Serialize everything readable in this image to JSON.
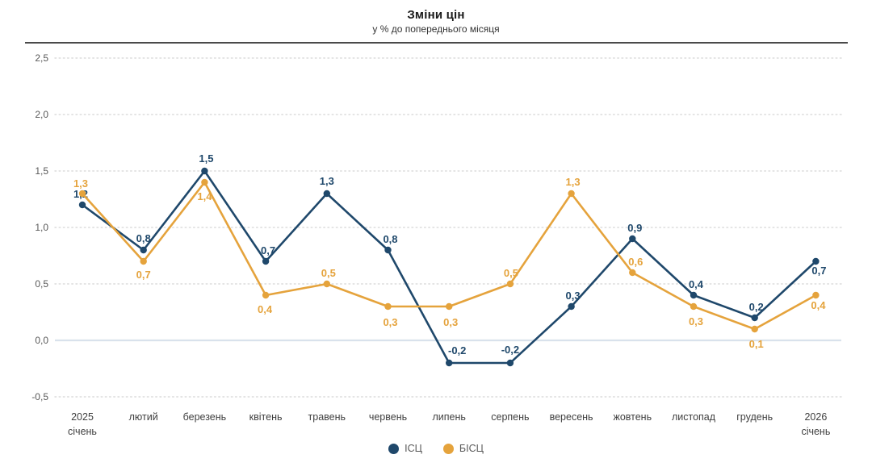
{
  "header": {
    "title": "Зміни цін",
    "subtitle": "у % до попереднього місяця"
  },
  "chart_data": {
    "type": "line",
    "categories": [
      [
        "2025",
        "січень"
      ],
      [
        "лютий"
      ],
      [
        "березень"
      ],
      [
        "квітень"
      ],
      [
        "травень"
      ],
      [
        "червень"
      ],
      [
        "липень"
      ],
      [
        "серпень"
      ],
      [
        "вересень"
      ],
      [
        "жовтень"
      ],
      [
        "листопад"
      ],
      [
        "грудень"
      ],
      [
        "2026",
        "січень"
      ]
    ],
    "series": [
      {
        "name": "ІСЦ",
        "color": "#1f486b",
        "values": [
          1.2,
          0.8,
          1.5,
          0.7,
          1.3,
          0.8,
          -0.2,
          -0.2,
          0.3,
          0.9,
          0.4,
          0.2,
          0.7
        ],
        "labels": [
          "1,2",
          "0,8",
          "1,5",
          "0,7",
          "1,3",
          "0,8",
          "-0,2",
          "-0,2",
          "0,3",
          "0,9",
          "0,4",
          "0,2",
          "0,7"
        ],
        "label_offsets": [
          [
            -2,
            -13
          ],
          [
            0,
            -14
          ],
          [
            2,
            -15
          ],
          [
            3,
            -13
          ],
          [
            0,
            -15
          ],
          [
            3,
            -13
          ],
          [
            10,
            -15
          ],
          [
            0,
            -16
          ],
          [
            2,
            -13
          ],
          [
            3,
            -13
          ],
          [
            3,
            -13
          ],
          [
            2,
            -13
          ],
          [
            4,
            12
          ]
        ]
      },
      {
        "name": "БІСЦ",
        "color": "#e5a33c",
        "values": [
          1.3,
          0.7,
          1.4,
          0.4,
          0.5,
          0.3,
          0.3,
          0.5,
          1.3,
          0.6,
          0.3,
          0.1,
          0.4
        ],
        "labels": [
          "1,3",
          "0,7",
          "1,4",
          "0,4",
          "0,5",
          "0,3",
          "0,3",
          "0,5",
          "1,3",
          "0,6",
          "0,3",
          "0,1",
          "0,4"
        ],
        "label_offsets": [
          [
            -2,
            -12
          ],
          [
            0,
            17
          ],
          [
            0,
            18
          ],
          [
            -1,
            18
          ],
          [
            2,
            -13
          ],
          [
            3,
            20
          ],
          [
            2,
            20
          ],
          [
            1,
            -13
          ],
          [
            2,
            -14
          ],
          [
            4,
            -13
          ],
          [
            3,
            19
          ],
          [
            2,
            19
          ],
          [
            3,
            13
          ]
        ]
      }
    ],
    "title": "Зміни цін",
    "xlabel": "",
    "ylabel": "",
    "ylim": [
      -0.5,
      2.5
    ],
    "ytick_step": 0.5,
    "yticks": [
      "2,5",
      "2,0",
      "1,5",
      "1,0",
      "0,5",
      "0,0",
      "-0,5"
    ],
    "ytick_values": [
      2.5,
      2.0,
      1.5,
      1.0,
      0.5,
      0.0,
      -0.5
    ],
    "grid": "dotted-horizontal",
    "zero_line": true,
    "legend_position": "bottom-center"
  },
  "legend": {
    "items": [
      {
        "label": "ІСЦ",
        "color": "#1f486b"
      },
      {
        "label": "БІСЦ",
        "color": "#e5a33c"
      }
    ]
  },
  "colors": {
    "grid_dotted": "#dcdcdc",
    "zero_line": "#d9e2ec",
    "axis_text": "#595959",
    "x_label_text": "#3f3f3f",
    "divider": "#4a4a4a"
  }
}
